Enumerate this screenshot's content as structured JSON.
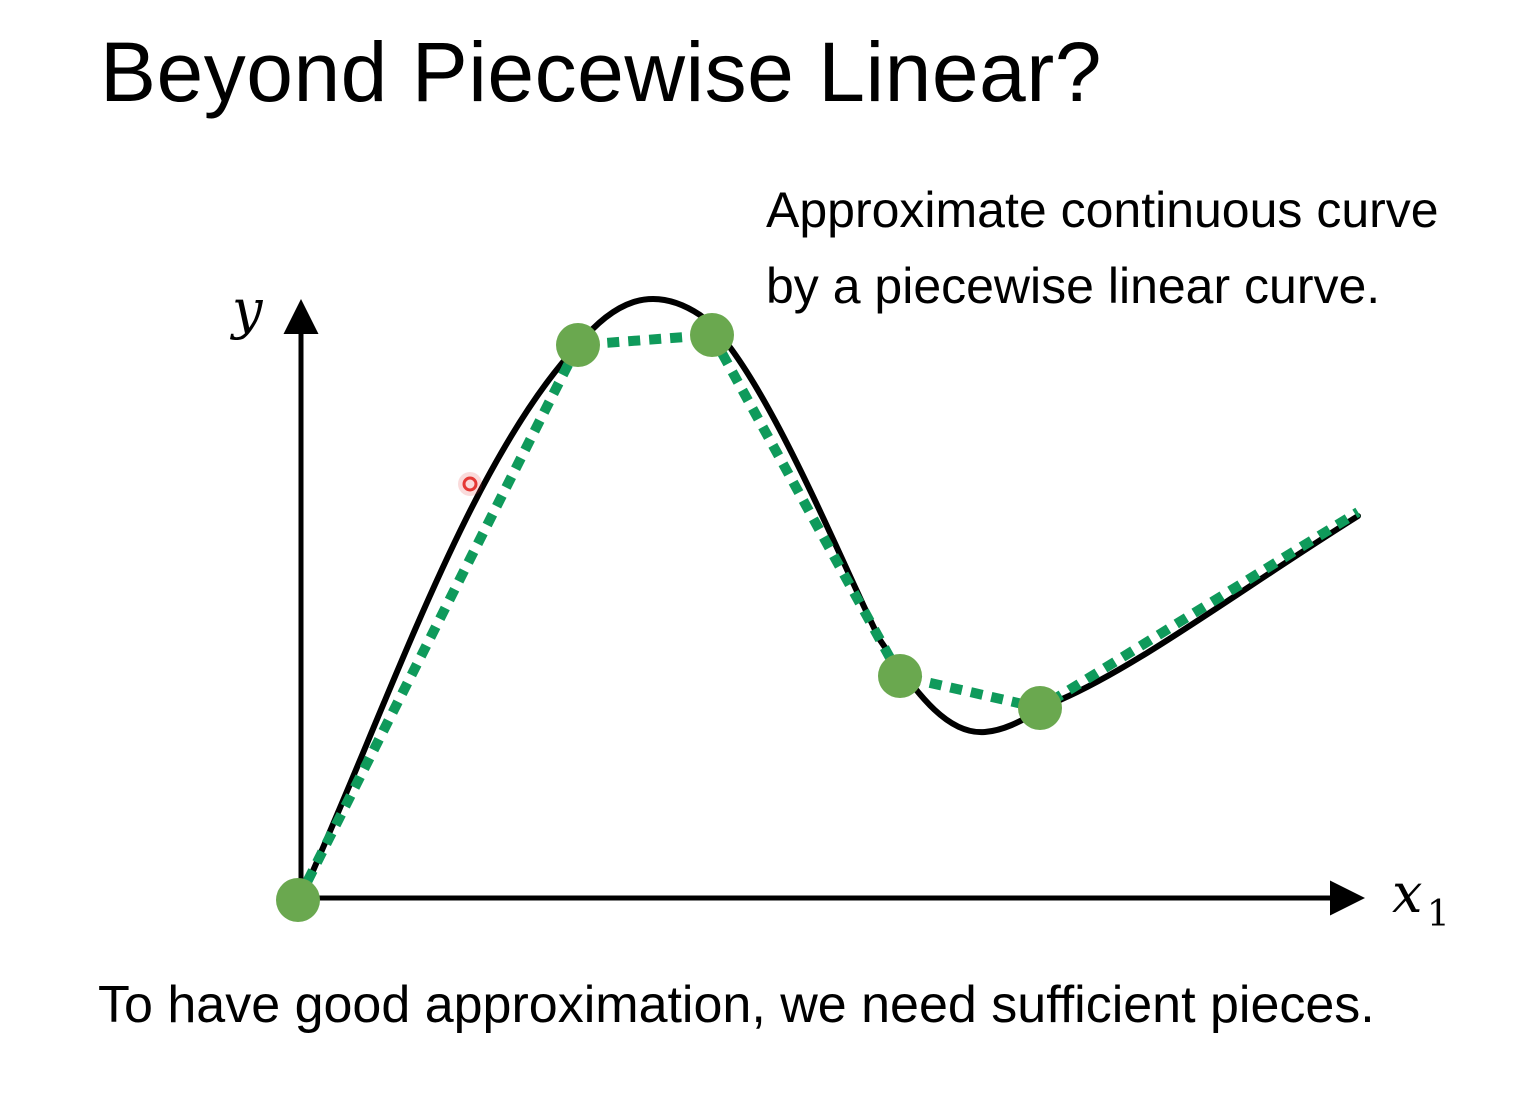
{
  "slide": {
    "title": "Beyond Piecewise Linear?",
    "caption_lines": [
      "Approximate continuous curve",
      "by a piecewise linear curve."
    ],
    "footer": "To have good approximation, we need sufficient pieces."
  },
  "axes": {
    "y_label": "y",
    "x_label": "x",
    "x_subscript": "1"
  },
  "colors": {
    "curve": "#000000",
    "piecewise_line": "#0f9a5b",
    "breakpoint": "#6aa84f",
    "pointer": "#e53935"
  }
}
